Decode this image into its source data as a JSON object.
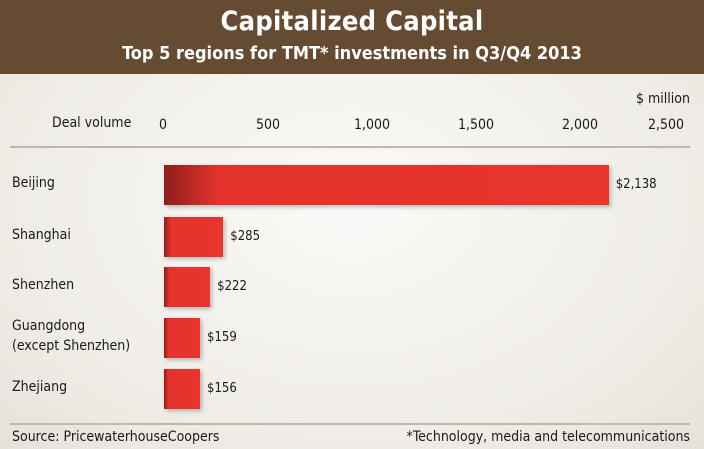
{
  "chart_data": {
    "type": "bar",
    "orientation": "horizontal",
    "title": "Capitalized Capital",
    "subtitle": "Top 5 regions for TMT* investments in Q3/Q4 2013",
    "xlabel": "Deal volume",
    "unit": "$ million",
    "xlim": [
      0,
      2500
    ],
    "ticks": [
      "0",
      "500",
      "1,000",
      "1,500",
      "2,000",
      "2,500"
    ],
    "tick_values": [
      0,
      500,
      1000,
      1500,
      2000,
      2500
    ],
    "categories": [
      "Beijing",
      "Shanghai",
      "Shenzhen",
      "Guangdong\n(except Shenzhen)",
      "Zhejiang"
    ],
    "values": [
      2138,
      285,
      222,
      159,
      156
    ],
    "data_labels": [
      "$2,138",
      "$285",
      "$222",
      "$159",
      "$156"
    ],
    "bar_color": "#e8352e",
    "grid": false,
    "source": "Source: PricewaterhouseCoopers",
    "footnote": "*Technology, media and telecommunications"
  },
  "colors": {
    "header": "#664b33",
    "background": "#efece6"
  }
}
